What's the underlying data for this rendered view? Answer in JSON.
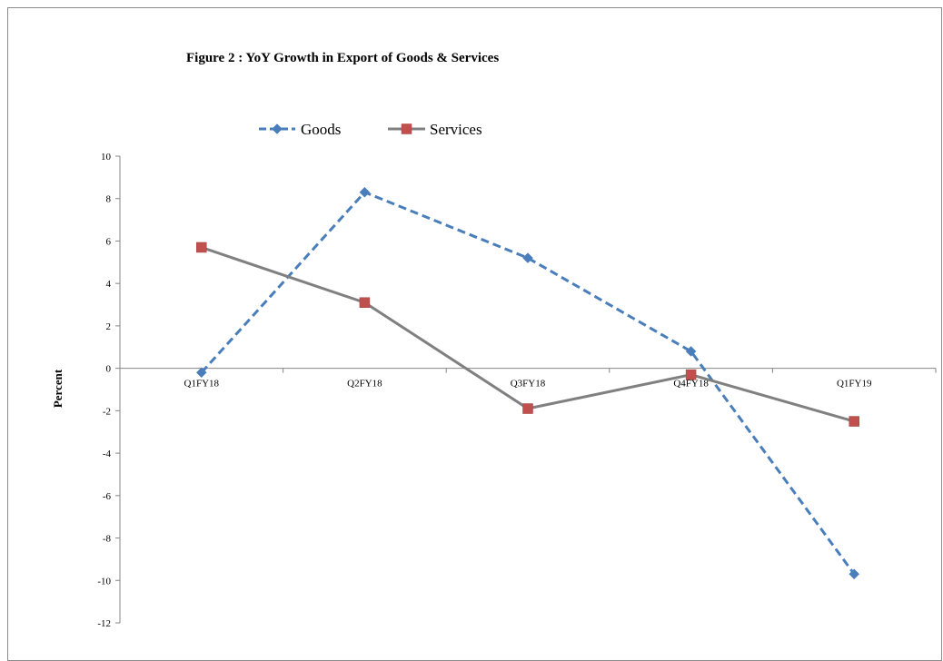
{
  "chart_data": {
    "type": "line",
    "title": "Figure 2 : YoY Growth in Export  of Goods & Services",
    "xlabel": "",
    "ylabel": "Percent",
    "categories": [
      "Q1FY18",
      "Q2FY18",
      "Q3FY18",
      "Q4FY18",
      "Q1FY19"
    ],
    "ylim": [
      -12,
      10
    ],
    "yticks": [
      10,
      8,
      6,
      4,
      2,
      0,
      -2,
      -4,
      -6,
      -8,
      -10,
      -12
    ],
    "grid": false,
    "legend_position": "top",
    "series": [
      {
        "name": "Goods",
        "values": [
          -0.2,
          8.3,
          5.2,
          0.8,
          -9.7
        ],
        "color": "#4a7ebb",
        "line_style": "dashed",
        "marker": "diamond"
      },
      {
        "name": "Services",
        "values": [
          5.7,
          3.1,
          -1.9,
          -0.3,
          -2.5
        ],
        "color": "#808080",
        "marker_color": "#c0504d",
        "line_style": "solid",
        "marker": "square"
      }
    ]
  }
}
